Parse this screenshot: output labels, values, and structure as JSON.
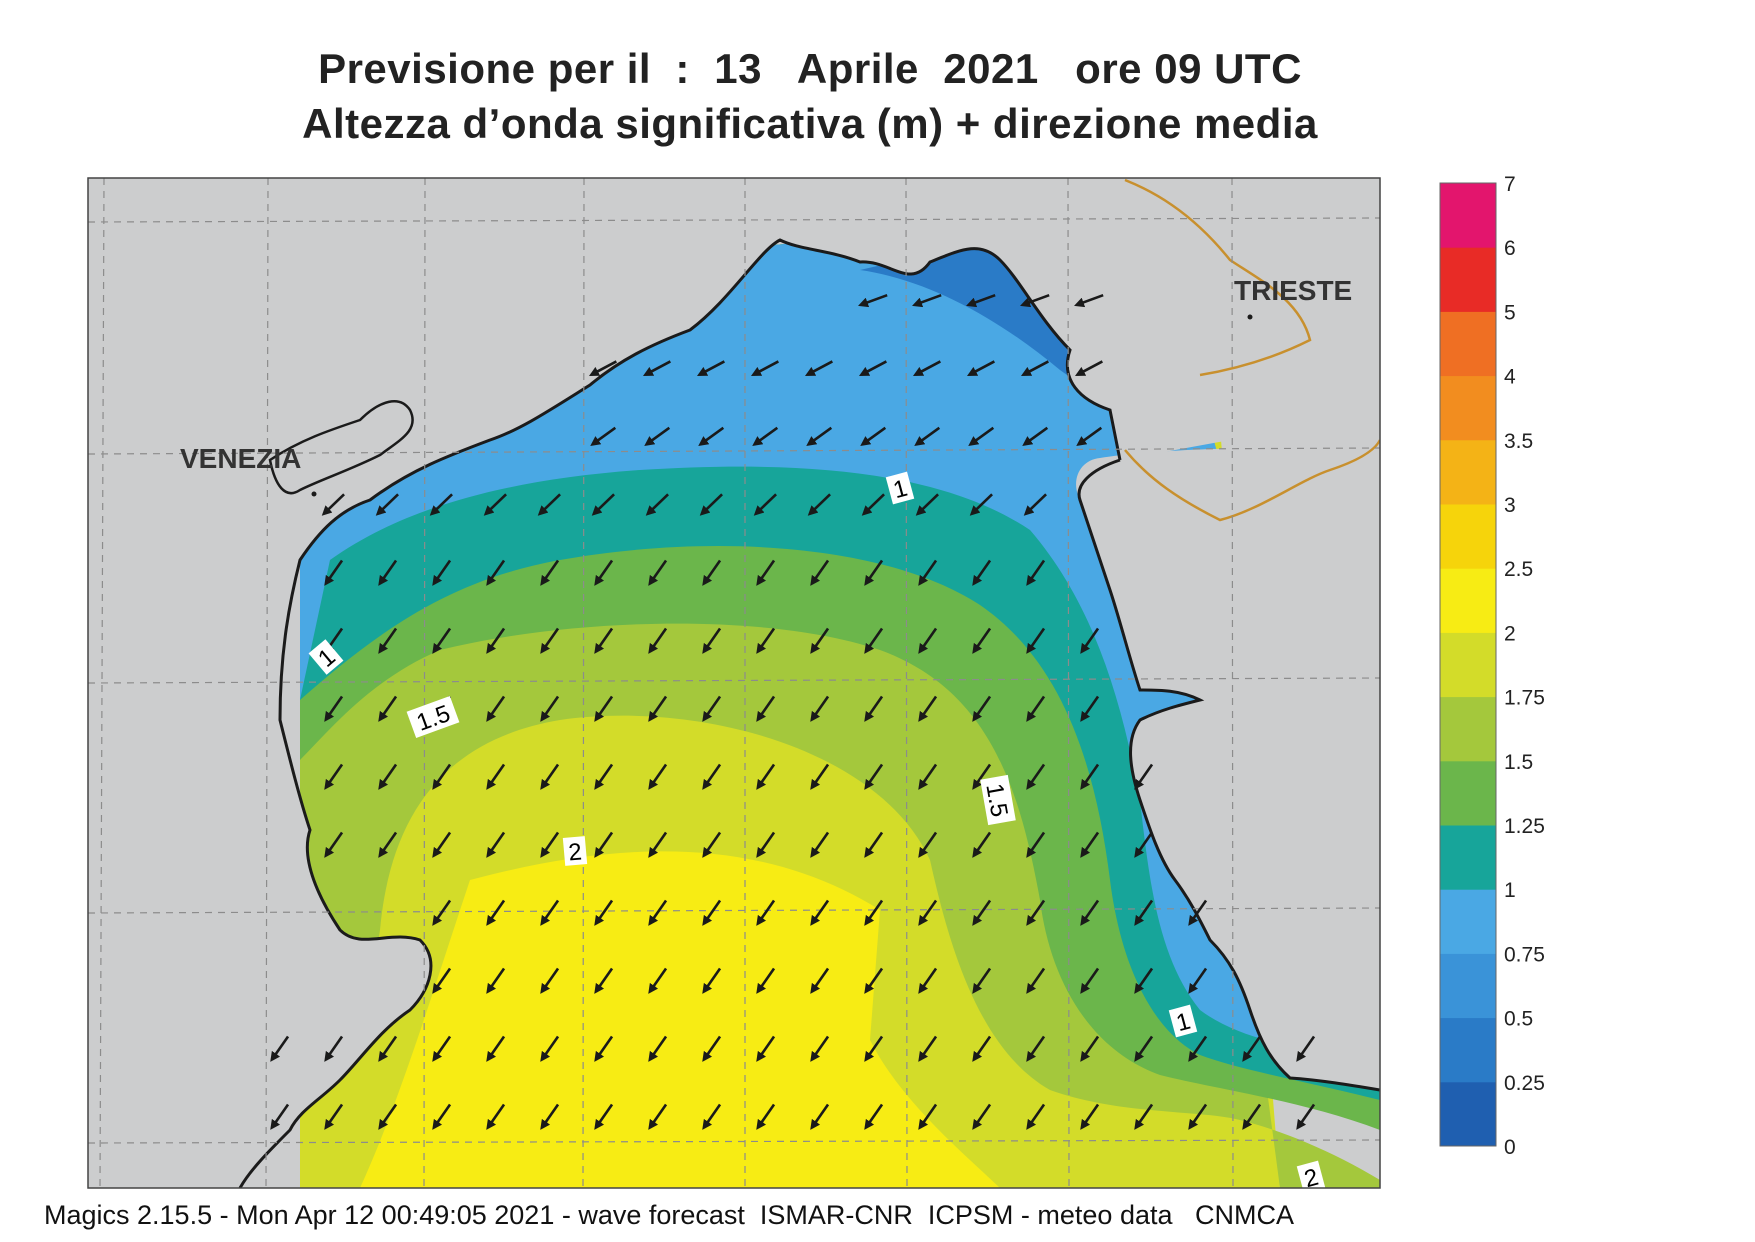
{
  "title": {
    "line1": "Previsione per il  :  13   Aprile  2021   ore 09 UTC",
    "line2": "Altezza d’onda significativa (m) + direzione media"
  },
  "map": {
    "cities": [
      "VENEZIA",
      "TRIESTE"
    ],
    "contour_labels": [
      "1",
      "1",
      "1.5",
      "1.5",
      "2",
      "1",
      "2"
    ],
    "arrow_direction": "south-west"
  },
  "legend": {
    "levels": [
      "0",
      "0.25",
      "0.5",
      "0.75",
      "1",
      "1.25",
      "1.5",
      "1.75",
      "2",
      "2.5",
      "3",
      "3.5",
      "4",
      "5",
      "6",
      "7"
    ],
    "colors": [
      "#1f5fb0",
      "#2a7bc7",
      "#3a93d8",
      "#4aa8e4",
      "#17a59a",
      "#6bb64b",
      "#a4c83c",
      "#d3dc29",
      "#f7ec14",
      "#f6d40b",
      "#f4b316",
      "#f28d1f",
      "#ef6f23",
      "#e82b26",
      "#e3156d"
    ]
  },
  "colors": {
    "land": "#cccdce",
    "coast": "#1b1b1b",
    "border": "#c8902e",
    "grid": "#8c8c8c"
  },
  "footer": "Magics 2.15.5 - Mon Apr 12 00:49:05 2021 - wave forecast  ISMAR-CNR  ICPSM - meteo data   CNMCA"
}
